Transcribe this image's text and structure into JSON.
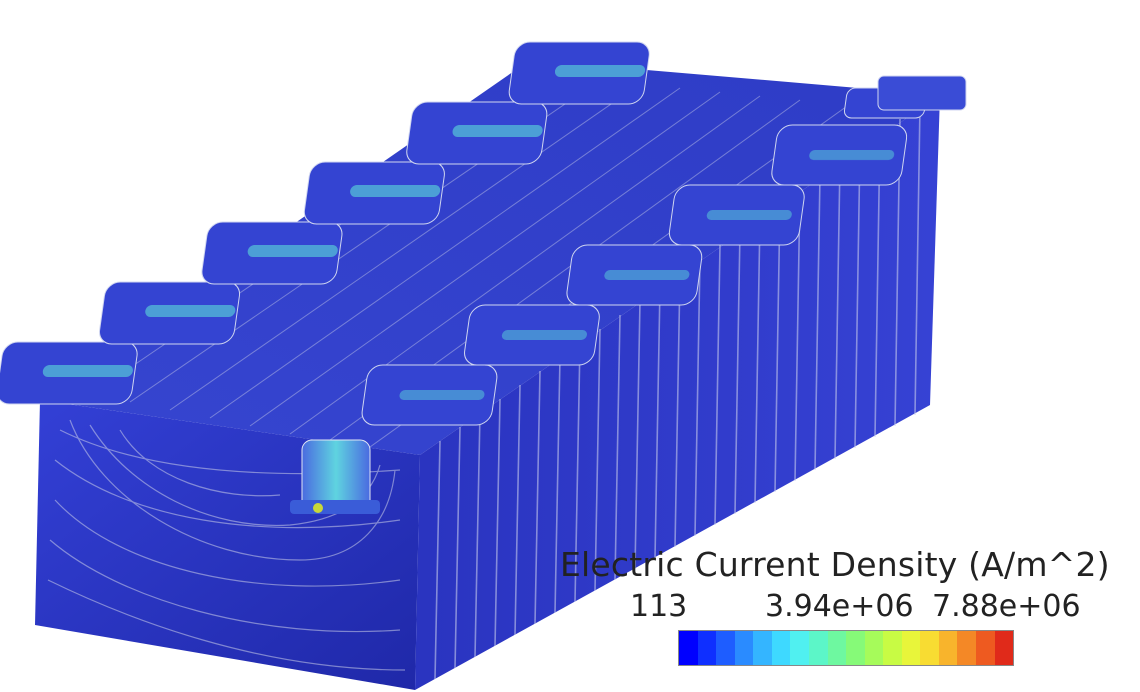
{
  "legend": {
    "title": "Electric Current Density (A/m^2)",
    "ticks": [
      "113",
      "3.94e+06",
      "7.88e+06"
    ],
    "colormap": [
      "#0000ff",
      "#0f2fff",
      "#1e5dff",
      "#2a8bff",
      "#34b5ff",
      "#3ed9ff",
      "#50f0f0",
      "#5cf6c8",
      "#6ef8a0",
      "#86fa78",
      "#a6fb5a",
      "#c8fb44",
      "#e8f53a",
      "#f8dc32",
      "#f8b42c",
      "#f48826",
      "#ee5a20",
      "#e02a1a"
    ]
  },
  "colors": {
    "body_base": "#2b34c8",
    "body_side": "#2430b8",
    "body_front": "#2e3ac4",
    "streamline": "#c9cde8",
    "hotspot": "#5cf0c8"
  }
}
